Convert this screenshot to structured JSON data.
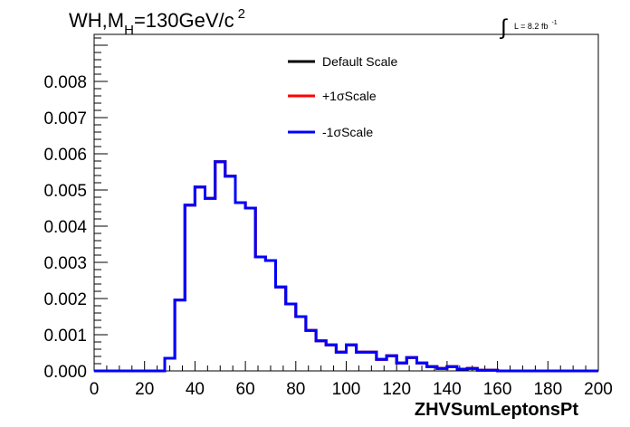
{
  "chart_data": {
    "type": "line",
    "title_main": "WH,M",
    "title_sub": "H",
    "title_rest": "=130GeV/c",
    "title_sup": "2",
    "lumi_main": "L = 8.2 fb",
    "lumi_sup": "-1",
    "xlabel": "ZHVSumLeptonsPt",
    "ylabel": "",
    "xlim": [
      0,
      200
    ],
    "ylim": [
      0,
      0.0093
    ],
    "x_ticks": [
      "0",
      "20",
      "40",
      "60",
      "80",
      "100",
      "120",
      "140",
      "160",
      "180",
      "200"
    ],
    "y_ticks": [
      "0.000",
      "0.001",
      "0.002",
      "0.003",
      "0.004",
      "0.005",
      "0.006",
      "0.007",
      "0.008"
    ],
    "bin_width": 4,
    "legend_position": "top-center",
    "series": [
      {
        "name": "Default Scale",
        "color": "#000000"
      },
      {
        "name": "+1σScale",
        "color": "#ff0000"
      },
      {
        "name": "-1σScale",
        "color": "#0000ff"
      }
    ],
    "bin_edges": [
      0,
      4,
      8,
      12,
      16,
      20,
      24,
      28,
      32,
      36,
      40,
      44,
      48,
      52,
      56,
      60,
      64,
      68,
      72,
      76,
      80,
      84,
      88,
      92,
      96,
      100,
      104,
      108,
      112,
      116,
      120,
      124,
      128,
      132,
      136,
      140,
      144,
      148,
      152,
      156,
      160,
      164,
      168,
      172,
      176,
      180,
      184,
      188,
      192,
      196,
      200
    ],
    "values": [
      0,
      0,
      0,
      0,
      0,
      0,
      0,
      0.00035,
      0.00196,
      0.00458,
      0.00508,
      0.00477,
      0.00578,
      0.00538,
      0.00465,
      0.0045,
      0.00315,
      0.00305,
      0.00232,
      0.00185,
      0.0015,
      0.00112,
      0.00083,
      0.00072,
      0.00052,
      0.00072,
      0.00052,
      0.00052,
      0.00032,
      0.00042,
      0.00022,
      0.00037,
      0.00022,
      0.00012,
      7e-05,
      0.00012,
      5e-05,
      7e-05,
      2e-05,
      2e-05,
      0,
      0,
      0,
      0,
      0,
      0,
      0,
      0,
      0,
      0
    ]
  }
}
